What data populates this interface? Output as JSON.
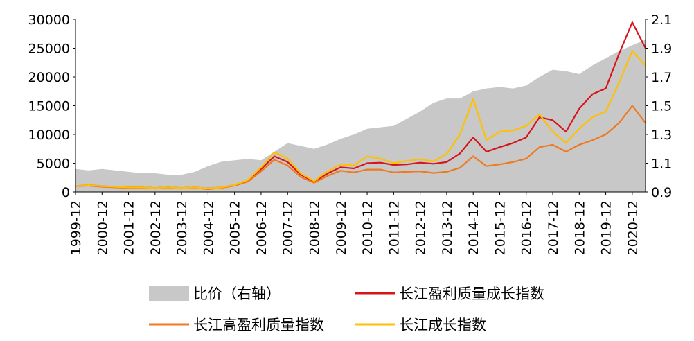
{
  "chart_data": {
    "type": "line",
    "x_range": [
      "1999-12",
      "2021-06"
    ],
    "x_ticks": [
      "1999-12",
      "2000-12",
      "2001-12",
      "2002-12",
      "2003-12",
      "2004-12",
      "2005-12",
      "2006-12",
      "2007-12",
      "2008-12",
      "2009-12",
      "2010-12",
      "2011-12",
      "2012-12",
      "2013-12",
      "2014-12",
      "2015-12",
      "2016-12",
      "2017-12",
      "2018-12",
      "2019-12",
      "2020-12"
    ],
    "y_left": {
      "range": [
        0,
        30000
      ],
      "ticks": [
        "0",
        "5000",
        "10000",
        "15000",
        "20000",
        "25000",
        "30000"
      ]
    },
    "y_right": {
      "range": [
        0.9,
        2.1
      ],
      "ticks": [
        "0.9",
        "1.1",
        "1.3",
        "1.5",
        "1.7",
        "1.9",
        "2.1"
      ]
    },
    "legend_position": "bottom",
    "grid": false,
    "series": [
      {
        "name": "比价（右轴）",
        "kind": "area",
        "axis": "right",
        "color": "#c8c8c8",
        "points": [
          [
            "1999-12",
            1.06
          ],
          [
            "2000-06",
            1.05
          ],
          [
            "2000-12",
            1.06
          ],
          [
            "2001-06",
            1.05
          ],
          [
            "2001-12",
            1.04
          ],
          [
            "2002-06",
            1.03
          ],
          [
            "2002-12",
            1.03
          ],
          [
            "2003-06",
            1.02
          ],
          [
            "2003-12",
            1.02
          ],
          [
            "2004-06",
            1.04
          ],
          [
            "2004-12",
            1.08
          ],
          [
            "2005-06",
            1.11
          ],
          [
            "2005-12",
            1.12
          ],
          [
            "2006-06",
            1.13
          ],
          [
            "2006-12",
            1.12
          ],
          [
            "2007-06",
            1.18
          ],
          [
            "2007-12",
            1.24
          ],
          [
            "2008-06",
            1.22
          ],
          [
            "2008-12",
            1.2
          ],
          [
            "2009-06",
            1.23
          ],
          [
            "2009-12",
            1.27
          ],
          [
            "2010-06",
            1.3
          ],
          [
            "2010-12",
            1.34
          ],
          [
            "2011-06",
            1.35
          ],
          [
            "2011-12",
            1.36
          ],
          [
            "2012-06",
            1.41
          ],
          [
            "2012-12",
            1.46
          ],
          [
            "2013-06",
            1.52
          ],
          [
            "2013-12",
            1.55
          ],
          [
            "2014-06",
            1.55
          ],
          [
            "2014-12",
            1.6
          ],
          [
            "2015-06",
            1.62
          ],
          [
            "2015-12",
            1.63
          ],
          [
            "2016-06",
            1.62
          ],
          [
            "2016-12",
            1.64
          ],
          [
            "2017-06",
            1.7
          ],
          [
            "2017-12",
            1.75
          ],
          [
            "2018-06",
            1.74
          ],
          [
            "2018-12",
            1.72
          ],
          [
            "2019-06",
            1.78
          ],
          [
            "2019-12",
            1.83
          ],
          [
            "2020-06",
            1.88
          ],
          [
            "2020-12",
            1.92
          ],
          [
            "2021-06",
            1.96
          ]
        ]
      },
      {
        "name": "长江盈利质量成长指数",
        "kind": "line",
        "axis": "left",
        "color": "#d71418",
        "points": [
          [
            "1999-12",
            1000
          ],
          [
            "2000-06",
            1200
          ],
          [
            "2000-12",
            1000
          ],
          [
            "2001-06",
            900
          ],
          [
            "2001-12",
            800
          ],
          [
            "2002-06",
            800
          ],
          [
            "2002-12",
            700
          ],
          [
            "2003-06",
            800
          ],
          [
            "2003-12",
            700
          ],
          [
            "2004-06",
            800
          ],
          [
            "2004-12",
            600
          ],
          [
            "2005-06",
            800
          ],
          [
            "2005-12",
            1200
          ],
          [
            "2006-06",
            2000
          ],
          [
            "2006-12",
            4000
          ],
          [
            "2007-06",
            6200
          ],
          [
            "2007-12",
            5200
          ],
          [
            "2008-06",
            3000
          ],
          [
            "2008-12",
            1800
          ],
          [
            "2009-06",
            3200
          ],
          [
            "2009-12",
            4300
          ],
          [
            "2010-06",
            4100
          ],
          [
            "2010-12",
            5000
          ],
          [
            "2011-06",
            5100
          ],
          [
            "2011-12",
            4700
          ],
          [
            "2012-06",
            4800
          ],
          [
            "2012-12",
            5100
          ],
          [
            "2013-06",
            4900
          ],
          [
            "2013-12",
            5200
          ],
          [
            "2014-06",
            6700
          ],
          [
            "2014-12",
            9500
          ],
          [
            "2015-06",
            7000
          ],
          [
            "2015-12",
            7800
          ],
          [
            "2016-06",
            8500
          ],
          [
            "2016-12",
            9500
          ],
          [
            "2017-06",
            13000
          ],
          [
            "2017-12",
            12500
          ],
          [
            "2018-06",
            10500
          ],
          [
            "2018-12",
            14500
          ],
          [
            "2019-06",
            17000
          ],
          [
            "2019-12",
            18000
          ],
          [
            "2020-06",
            24000
          ],
          [
            "2020-12",
            29500
          ],
          [
            "2021-06",
            25000
          ]
        ]
      },
      {
        "name": "长江高盈利质量指数",
        "kind": "line",
        "axis": "left",
        "color": "#f07920",
        "points": [
          [
            "1999-12",
            1000
          ],
          [
            "2000-06",
            1100
          ],
          [
            "2000-12",
            900
          ],
          [
            "2001-06",
            800
          ],
          [
            "2001-12",
            700
          ],
          [
            "2002-06",
            700
          ],
          [
            "2002-12",
            600
          ],
          [
            "2003-06",
            700
          ],
          [
            "2003-12",
            600
          ],
          [
            "2004-06",
            700
          ],
          [
            "2004-12",
            500
          ],
          [
            "2005-06",
            700
          ],
          [
            "2005-12",
            1100
          ],
          [
            "2006-06",
            1800
          ],
          [
            "2006-12",
            3600
          ],
          [
            "2007-06",
            5600
          ],
          [
            "2007-12",
            4600
          ],
          [
            "2008-06",
            2600
          ],
          [
            "2008-12",
            1600
          ],
          [
            "2009-06",
            2800
          ],
          [
            "2009-12",
            3700
          ],
          [
            "2010-06",
            3400
          ],
          [
            "2010-12",
            3900
          ],
          [
            "2011-06",
            3900
          ],
          [
            "2011-12",
            3400
          ],
          [
            "2012-06",
            3500
          ],
          [
            "2012-12",
            3600
          ],
          [
            "2013-06",
            3300
          ],
          [
            "2013-12",
            3500
          ],
          [
            "2014-06",
            4200
          ],
          [
            "2014-12",
            6200
          ],
          [
            "2015-06",
            4500
          ],
          [
            "2015-12",
            4800
          ],
          [
            "2016-06",
            5200
          ],
          [
            "2016-12",
            5800
          ],
          [
            "2017-06",
            7800
          ],
          [
            "2017-12",
            8200
          ],
          [
            "2018-06",
            7000
          ],
          [
            "2018-12",
            8200
          ],
          [
            "2019-06",
            9000
          ],
          [
            "2019-12",
            10000
          ],
          [
            "2020-06",
            12000
          ],
          [
            "2020-12",
            15000
          ],
          [
            "2021-06",
            12000
          ]
        ]
      },
      {
        "name": "长江成长指数",
        "kind": "line",
        "axis": "left",
        "color": "#ffc000",
        "points": [
          [
            "1999-12",
            1000
          ],
          [
            "2000-06",
            1200
          ],
          [
            "2000-12",
            1000
          ],
          [
            "2001-06",
            900
          ],
          [
            "2001-12",
            800
          ],
          [
            "2002-06",
            800
          ],
          [
            "2002-12",
            700
          ],
          [
            "2003-06",
            800
          ],
          [
            "2003-12",
            700
          ],
          [
            "2004-06",
            800
          ],
          [
            "2004-12",
            600
          ],
          [
            "2005-06",
            800
          ],
          [
            "2005-12",
            1200
          ],
          [
            "2006-06",
            2100
          ],
          [
            "2006-12",
            4300
          ],
          [
            "2007-06",
            6900
          ],
          [
            "2007-12",
            5800
          ],
          [
            "2008-06",
            3200
          ],
          [
            "2008-12",
            1900
          ],
          [
            "2009-06",
            3600
          ],
          [
            "2009-12",
            4800
          ],
          [
            "2010-06",
            4600
          ],
          [
            "2010-12",
            6200
          ],
          [
            "2011-06",
            5800
          ],
          [
            "2011-12",
            5000
          ],
          [
            "2012-06",
            5400
          ],
          [
            "2012-12",
            5700
          ],
          [
            "2013-06",
            5300
          ],
          [
            "2013-12",
            6600
          ],
          [
            "2014-06",
            10000
          ],
          [
            "2014-12",
            16200
          ],
          [
            "2015-06",
            9000
          ],
          [
            "2015-12",
            10500
          ],
          [
            "2016-06",
            10700
          ],
          [
            "2016-12",
            11500
          ],
          [
            "2017-06",
            13500
          ],
          [
            "2017-12",
            10500
          ],
          [
            "2018-06",
            8500
          ],
          [
            "2018-12",
            11000
          ],
          [
            "2019-06",
            13000
          ],
          [
            "2019-12",
            14000
          ],
          [
            "2020-06",
            19000
          ],
          [
            "2020-12",
            24500
          ],
          [
            "2021-06",
            22000
          ]
        ]
      }
    ]
  }
}
